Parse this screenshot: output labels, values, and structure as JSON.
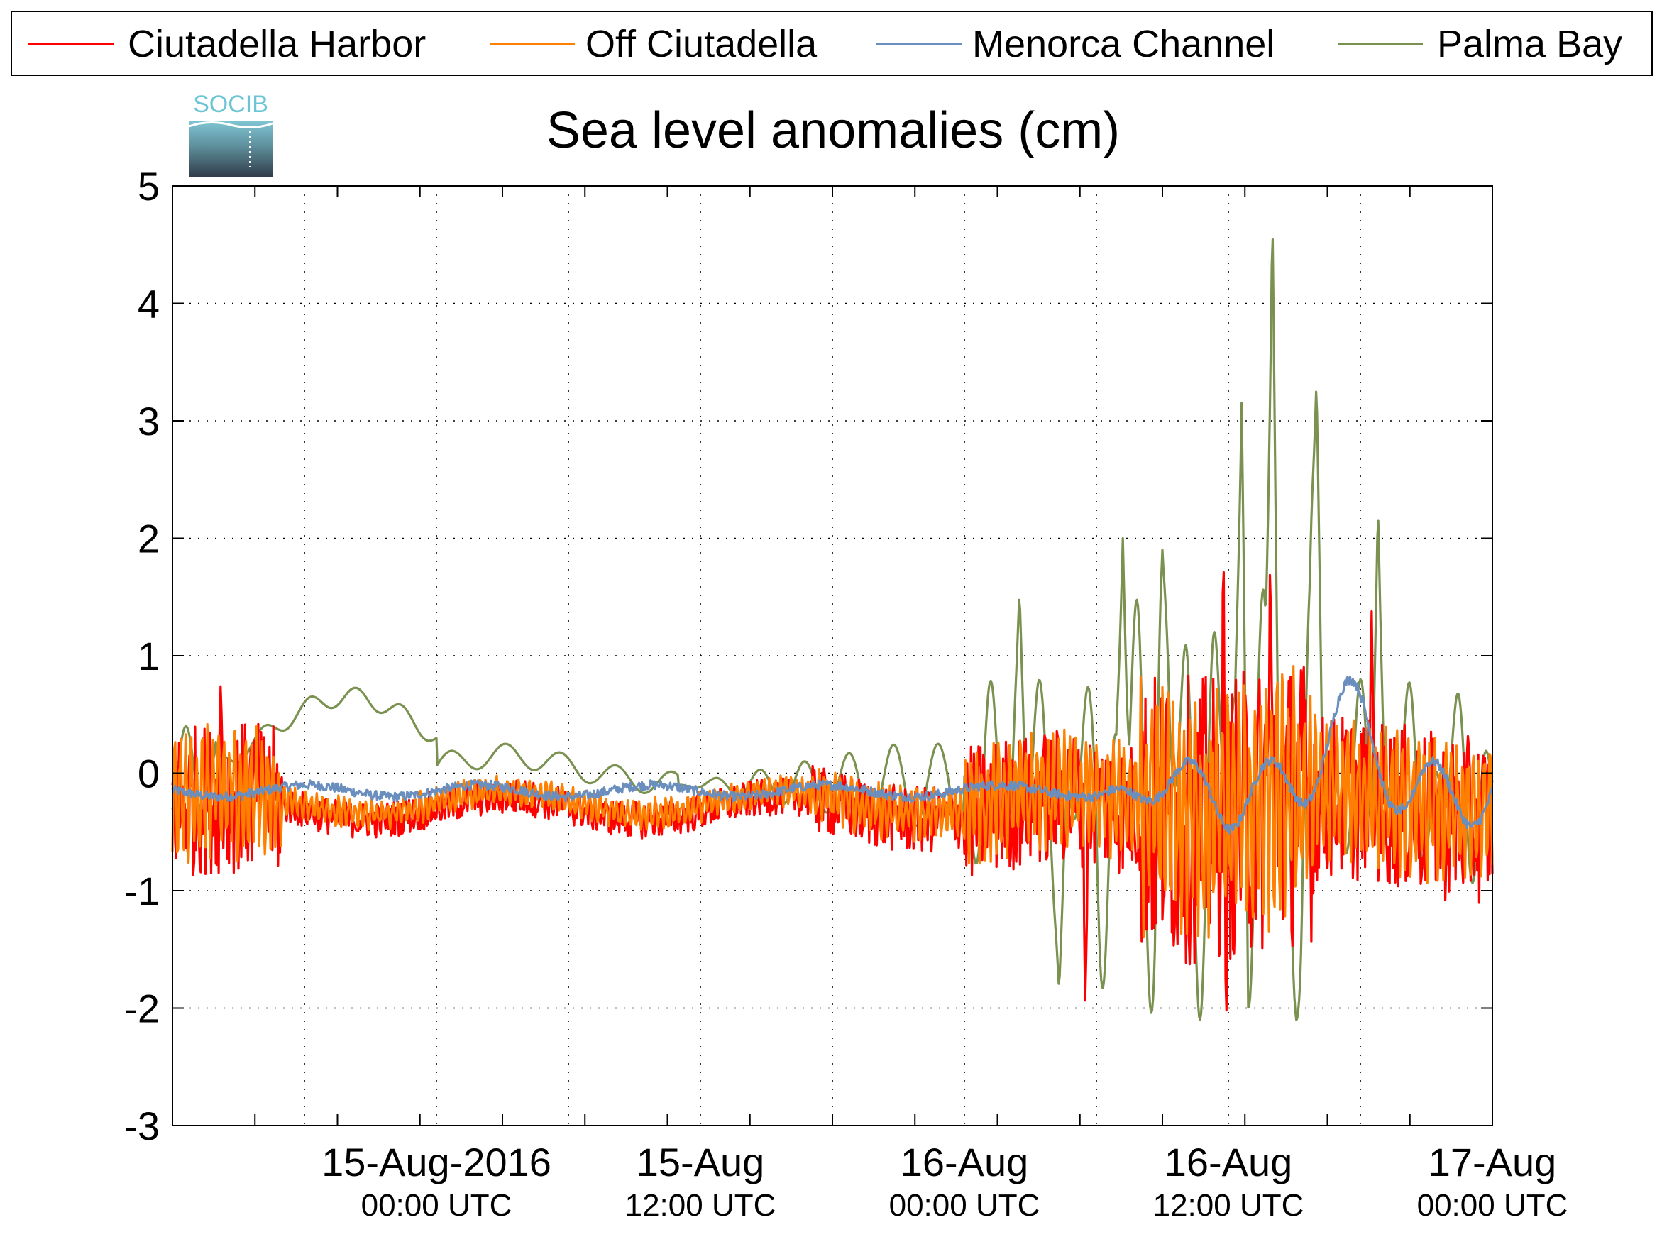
{
  "chart_data": {
    "type": "line",
    "title": "Sea level anomalies (cm)",
    "logo_text": "SOCIB",
    "xlabel": "",
    "ylabel": "",
    "grid": true,
    "legend_position": "top",
    "x_range_hours": [
      -12,
      48
    ],
    "ylim": [
      -3,
      5
    ],
    "y_ticks": [
      5,
      4,
      3,
      2,
      1,
      0,
      -1,
      -2,
      -3
    ],
    "y_tick_labels": [
      "5",
      "4",
      "3",
      "2",
      "1",
      "0",
      "-1",
      "-2",
      "-3"
    ],
    "x_tick_labels": [
      {
        "date": "15-Aug-2016",
        "time": "00:00 UTC"
      },
      {
        "date": "15-Aug",
        "time": "12:00 UTC"
      },
      {
        "date": "16-Aug",
        "time": "00:00 UTC"
      },
      {
        "date": "16-Aug",
        "time": "12:00 UTC"
      },
      {
        "date": "17-Aug",
        "time": "00:00 UTC"
      }
    ],
    "series": [
      {
        "name": "Ciutadella Harbor",
        "color": "#ff0000"
      },
      {
        "name": "Off Ciutadella",
        "color": "#ff7f00"
      },
      {
        "name": "Menorca Channel",
        "color": "#6a8fbf"
      },
      {
        "name": "Palma Bay",
        "color": "#7a9150"
      }
    ]
  }
}
